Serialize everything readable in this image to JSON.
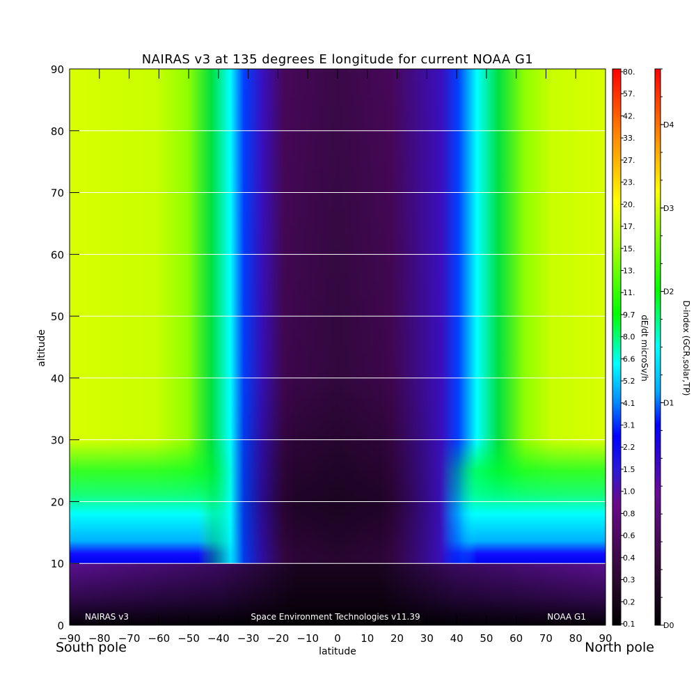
{
  "chart_data": {
    "type": "heatmap",
    "title": "NAIRAS v3 at 135 degrees E longitude for current NOAA G1",
    "xlabel": "latitude",
    "ylabel": "altitude",
    "x_ticks": [
      -90,
      -80,
      -70,
      -60,
      -50,
      -40,
      -30,
      -20,
      -10,
      0,
      10,
      20,
      30,
      40,
      50,
      60,
      70,
      80,
      90
    ],
    "y_ticks": [
      0,
      10,
      20,
      30,
      40,
      50,
      60,
      70,
      80,
      90
    ],
    "xlim": [
      -90,
      90
    ],
    "ylim": [
      0,
      90
    ],
    "grid_lines_y": [
      10,
      20,
      30,
      40,
      50,
      60,
      70,
      80
    ],
    "pole_labels": {
      "south": "South pole",
      "north": "North pole"
    },
    "footer": {
      "left": "NAIRAS v3",
      "center": "Space Environment Technologies v11.39",
      "right": "NOAA G1"
    },
    "colorbar_dose": {
      "label": "dE/dt microSv/h",
      "scale": "log",
      "ticks": [
        "0.1",
        "0.2",
        "0.3",
        "0.4",
        "0.6",
        "0.8",
        "1.0",
        "1.5",
        "2.2",
        "3.1",
        "4.1",
        "5.2",
        "6.6",
        "8.0",
        "9.7",
        "11.",
        "13.",
        "15.",
        "17.",
        "20.",
        "23.",
        "27.",
        "33.",
        "42.",
        "57.",
        "80."
      ]
    },
    "colorbar_dindex": {
      "label": "D-index (GCR,solar,TP)",
      "ticks": [
        "D0",
        "D1",
        "D2",
        "D3",
        "D4"
      ],
      "tick_positions": [
        0,
        0.4,
        0.6,
        0.75,
        0.9
      ]
    },
    "colormap": [
      "#000000",
      "#2a0a2e",
      "#6a0a8a",
      "#2a1ad8",
      "#0000ff",
      "#00aaff",
      "#00ffff",
      "#00ff00",
      "#aaff00",
      "#ffff00",
      "#ff8800",
      "#ff0000"
    ],
    "regions": {
      "dose_band_latitude_bounds_deg": [
        40,
        58
      ],
      "low_band_altitude_top": 10,
      "surface_band_altitude_top": 20
    }
  }
}
